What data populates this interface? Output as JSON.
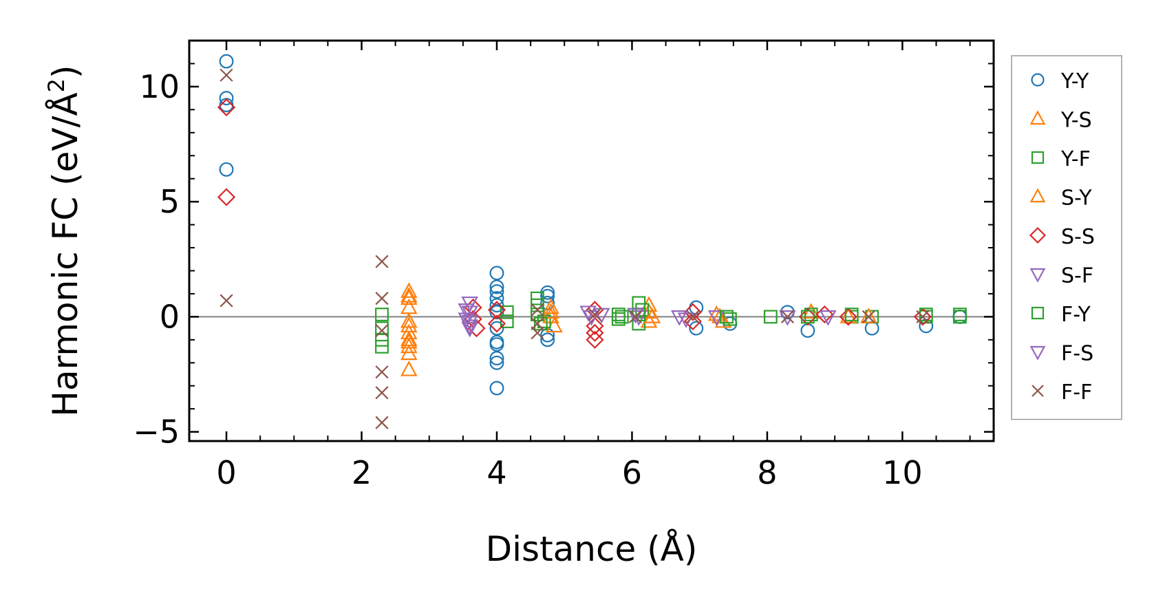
{
  "chart_data": {
    "type": "scatter",
    "xlabel": "Distance (Å)",
    "ylabel_main": "Harmonic FC (eV/Å",
    "ylabel_sup": "2",
    "ylabel_close": ")",
    "xlim": [
      -0.55,
      11.35
    ],
    "ylim": [
      -5.4,
      12.0
    ],
    "xticks": [
      0,
      2,
      4,
      6,
      8,
      10
    ],
    "xtick_labels": [
      "0",
      "2",
      "4",
      "6",
      "8",
      "10"
    ],
    "yticks": [
      -5,
      0,
      5,
      10
    ],
    "ytick_labels": [
      "−5",
      "0",
      "5",
      "10"
    ],
    "reference_line_y": 0,
    "legend_position": "outside-right",
    "series": [
      {
        "name": "Y-Y",
        "marker": "circle",
        "color": "#1f77b4",
        "points": [
          [
            0,
            11.1
          ],
          [
            0,
            9.5
          ],
          [
            0,
            9.2
          ],
          [
            0,
            6.4
          ],
          [
            4,
            1.9
          ],
          [
            4,
            1.3
          ],
          [
            4,
            1.1
          ],
          [
            4,
            0.8
          ],
          [
            4,
            0.5
          ],
          [
            4,
            0.2
          ],
          [
            4,
            -0.5
          ],
          [
            4,
            -1.1
          ],
          [
            4,
            -1.2
          ],
          [
            4,
            -1.8
          ],
          [
            4,
            -2.0
          ],
          [
            4,
            -3.1
          ],
          [
            4.75,
            1.05
          ],
          [
            4.75,
            0.9
          ],
          [
            4.75,
            0.6
          ],
          [
            4.75,
            -0.8
          ],
          [
            4.75,
            -1.0
          ],
          [
            6.95,
            0.4
          ],
          [
            6.95,
            -0.5
          ],
          [
            7.45,
            -0.3
          ],
          [
            8.3,
            0.2
          ],
          [
            8.6,
            -0.6
          ],
          [
            9.55,
            -0.5
          ],
          [
            10.35,
            -0.4
          ],
          [
            10.85,
            0.0
          ]
        ]
      },
      {
        "name": "Y-S",
        "marker": "triangle-up",
        "color": "#ff7f0e",
        "points": [
          [
            2.7,
            1.1
          ],
          [
            2.7,
            0.8
          ],
          [
            2.7,
            0.4
          ],
          [
            2.7,
            -0.4
          ],
          [
            2.7,
            -0.7
          ],
          [
            2.7,
            -1.0
          ],
          [
            2.7,
            -1.3
          ],
          [
            2.7,
            -1.6
          ],
          [
            2.7,
            -2.3
          ],
          [
            4.8,
            0.4
          ],
          [
            4.8,
            0.0
          ],
          [
            4.85,
            -0.4
          ],
          [
            6.25,
            0.5
          ],
          [
            6.25,
            0.2
          ],
          [
            6.25,
            -0.2
          ],
          [
            7.3,
            0.0
          ],
          [
            7.35,
            -0.2
          ],
          [
            8.65,
            0.2
          ]
        ]
      },
      {
        "name": "Y-F",
        "marker": "square",
        "color": "#2ca02c",
        "points": [
          [
            2.3,
            0.1
          ],
          [
            2.3,
            -1.3
          ],
          [
            4.15,
            0.2
          ],
          [
            4.15,
            -0.2
          ],
          [
            4.6,
            0.8
          ],
          [
            4.6,
            0.5
          ],
          [
            4.7,
            -0.2
          ],
          [
            5.8,
            0.1
          ],
          [
            5.8,
            -0.1
          ],
          [
            6.1,
            0.6
          ],
          [
            6.15,
            0.3
          ],
          [
            6.1,
            -0.3
          ],
          [
            7.45,
            -0.1
          ],
          [
            8.05,
            0.0
          ],
          [
            8.65,
            0.1
          ],
          [
            9.25,
            0.0
          ],
          [
            9.55,
            0.0
          ],
          [
            10.35,
            0.0
          ],
          [
            10.85,
            0.0
          ]
        ]
      },
      {
        "name": "S-Y",
        "marker": "triangle-up",
        "color": "#ff7f0e",
        "points": [
          [
            2.7,
            0.9
          ],
          [
            2.7,
            -0.2
          ],
          [
            2.7,
            -1.1
          ],
          [
            4.8,
            0.2
          ],
          [
            6.3,
            0.0
          ],
          [
            7.25,
            0.1
          ],
          [
            9.2,
            0.0
          ],
          [
            9.5,
            0.0
          ]
        ]
      },
      {
        "name": "S-S",
        "marker": "diamond",
        "color": "#d62728",
        "points": [
          [
            0,
            9.1
          ],
          [
            0,
            5.2
          ],
          [
            3.65,
            0.4
          ],
          [
            3.65,
            -0.1
          ],
          [
            3.7,
            -0.5
          ],
          [
            4.0,
            0.3
          ],
          [
            4.0,
            -0.3
          ],
          [
            5.45,
            0.3
          ],
          [
            5.45,
            -0.4
          ],
          [
            5.45,
            -0.7
          ],
          [
            5.45,
            -1.0
          ],
          [
            6.9,
            0.2
          ],
          [
            6.9,
            -0.2
          ],
          [
            8.6,
            0.0
          ],
          [
            8.85,
            0.1
          ],
          [
            9.2,
            0.0
          ],
          [
            10.3,
            0.0
          ]
        ]
      },
      {
        "name": "S-F",
        "marker": "triangle-down",
        "color": "#9467bd",
        "points": [
          [
            3.6,
            0.6
          ],
          [
            3.6,
            0.2
          ],
          [
            3.6,
            -0.2
          ],
          [
            3.6,
            -0.5
          ],
          [
            5.35,
            0.2
          ],
          [
            5.55,
            0.1
          ],
          [
            6.1,
            0.0
          ],
          [
            6.7,
            0.0
          ],
          [
            7.25,
            0.0
          ],
          [
            8.3,
            0.0
          ]
        ]
      },
      {
        "name": "F-Y",
        "marker": "square",
        "color": "#2ca02c",
        "points": [
          [
            2.3,
            -0.5
          ],
          [
            2.3,
            -1.0
          ],
          [
            4.6,
            0.1
          ],
          [
            4.65,
            -0.3
          ],
          [
            5.85,
            0.0
          ],
          [
            6.1,
            0.1
          ],
          [
            7.4,
            0.0
          ],
          [
            8.6,
            0.0
          ],
          [
            9.25,
            0.1
          ],
          [
            10.35,
            0.1
          ],
          [
            10.85,
            0.1
          ]
        ]
      },
      {
        "name": "F-S",
        "marker": "triangle-down",
        "color": "#9467bd",
        "points": [
          [
            3.55,
            0.3
          ],
          [
            3.55,
            -0.1
          ],
          [
            3.6,
            -0.4
          ],
          [
            5.4,
            0.0
          ],
          [
            6.05,
            0.1
          ],
          [
            6.8,
            -0.1
          ],
          [
            8.9,
            0.0
          ]
        ]
      },
      {
        "name": "F-F",
        "marker": "x",
        "color": "#8c564b",
        "points": [
          [
            0,
            10.5
          ],
          [
            0,
            0.7
          ],
          [
            2.3,
            2.4
          ],
          [
            2.3,
            0.8
          ],
          [
            2.3,
            -0.6
          ],
          [
            2.3,
            -2.4
          ],
          [
            2.3,
            -3.3
          ],
          [
            2.3,
            -4.6
          ],
          [
            4.6,
            0.3
          ],
          [
            4.6,
            -0.3
          ],
          [
            4.6,
            -0.7
          ],
          [
            5.45,
            0.1
          ],
          [
            6.05,
            0.0
          ],
          [
            6.9,
            0.0
          ],
          [
            8.3,
            0.0
          ],
          [
            9.5,
            0.0
          ],
          [
            10.3,
            0.0
          ]
        ]
      }
    ]
  }
}
